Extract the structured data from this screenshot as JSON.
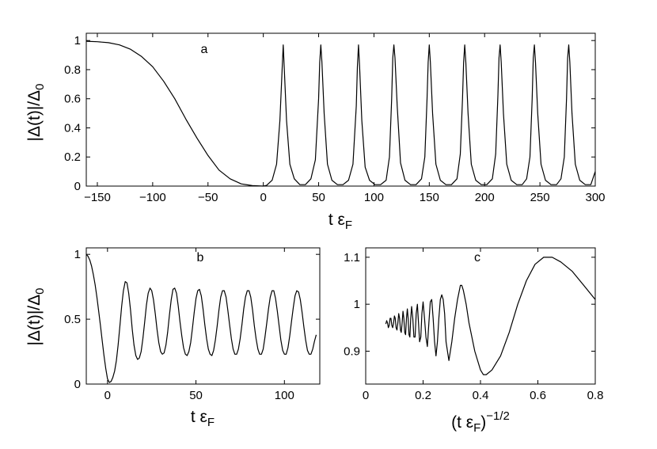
{
  "chart_data": [
    {
      "panel": "a",
      "type": "line",
      "title": "",
      "xlabel": "t εF",
      "ylabel": "|Δ(t)|/Δ0",
      "xlim": [
        -160,
        300
      ],
      "ylim": [
        0,
        1.05
      ],
      "xticks": [
        "−150",
        "−100",
        "−50",
        "0",
        "50",
        "100",
        "150",
        "200",
        "250",
        "300"
      ],
      "xtick_values": [
        -150,
        -100,
        -50,
        0,
        50,
        100,
        150,
        200,
        250,
        300
      ],
      "yticks": [
        "0",
        "0.2",
        "0.4",
        "0.6",
        "0.8",
        "1"
      ],
      "ytick_values": [
        0,
        0.2,
        0.4,
        0.6,
        0.8,
        1
      ],
      "grid": false,
      "series": [
        {
          "x": [
            -160,
            -150,
            -140,
            -130,
            -120,
            -110,
            -100,
            -90,
            -80,
            -70,
            -60,
            -50,
            -40,
            -30,
            -20,
            -10,
            0,
            3,
            8,
            12,
            15,
            17,
            18,
            19,
            21,
            24,
            28,
            33,
            38,
            43,
            47,
            50,
            51,
            52,
            53,
            55,
            58,
            62,
            67,
            72,
            77,
            81,
            84,
            85,
            86,
            87,
            89,
            92,
            96,
            101,
            106,
            111,
            114,
            116,
            117,
            118,
            119,
            121,
            124,
            128,
            133,
            138,
            143,
            146,
            148,
            149,
            150,
            151,
            153,
            156,
            160,
            165,
            170,
            175,
            178,
            180,
            181,
            182,
            183,
            185,
            188,
            192,
            197,
            202,
            207,
            210,
            212,
            213,
            214,
            215,
            217,
            220,
            224,
            229,
            234,
            238,
            241,
            243,
            244,
            245,
            246,
            248,
            251,
            255,
            260,
            265,
            269,
            272,
            274,
            275,
            276,
            277,
            279,
            282,
            286,
            291,
            296,
            300
          ],
          "y": [
            0.995,
            0.992,
            0.985,
            0.97,
            0.94,
            0.89,
            0.82,
            0.72,
            0.6,
            0.46,
            0.33,
            0.21,
            0.11,
            0.05,
            0.015,
            0.003,
            0.0,
            0.005,
            0.04,
            0.15,
            0.45,
            0.8,
            0.97,
            0.8,
            0.45,
            0.15,
            0.05,
            0.01,
            0.01,
            0.05,
            0.18,
            0.6,
            0.85,
            0.97,
            0.85,
            0.5,
            0.15,
            0.04,
            0.01,
            0.01,
            0.04,
            0.15,
            0.55,
            0.82,
            0.97,
            0.82,
            0.45,
            0.13,
            0.04,
            0.01,
            0.01,
            0.04,
            0.2,
            0.6,
            0.88,
            0.97,
            0.88,
            0.55,
            0.16,
            0.04,
            0.01,
            0.01,
            0.05,
            0.2,
            0.6,
            0.85,
            0.97,
            0.85,
            0.5,
            0.15,
            0.04,
            0.01,
            0.01,
            0.05,
            0.22,
            0.6,
            0.85,
            0.97,
            0.85,
            0.5,
            0.15,
            0.04,
            0.01,
            0.01,
            0.05,
            0.22,
            0.62,
            0.88,
            0.97,
            0.85,
            0.5,
            0.15,
            0.04,
            0.01,
            0.01,
            0.05,
            0.2,
            0.6,
            0.88,
            0.97,
            0.85,
            0.5,
            0.15,
            0.04,
            0.01,
            0.01,
            0.05,
            0.2,
            0.6,
            0.88,
            0.97,
            0.85,
            0.5,
            0.15,
            0.04,
            0.01,
            0.01,
            0.1
          ]
        }
      ]
    },
    {
      "panel": "b",
      "type": "line",
      "title": "",
      "xlabel": "t εF",
      "ylabel": "|Δ(t)|/Δ0",
      "xlim": [
        -12,
        120
      ],
      "ylim": [
        0,
        1.05
      ],
      "xticks": [
        "0",
        "50",
        "100"
      ],
      "xtick_values": [
        0,
        50,
        100
      ],
      "yticks": [
        "0",
        "0.5",
        "1"
      ],
      "ytick_values": [
        0,
        0.5,
        1
      ],
      "grid": false,
      "series": [
        {
          "x": [
            -12,
            -11,
            -10,
            -9,
            -8,
            -7,
            -6,
            -5,
            -4,
            -3,
            -2,
            -1,
            0,
            1,
            2,
            3,
            4,
            5,
            6,
            7,
            8,
            9,
            10,
            11,
            12,
            13,
            14,
            15,
            16,
            17,
            18,
            19,
            20,
            21,
            22,
            23,
            24,
            25,
            26,
            27,
            28,
            29,
            30,
            31,
            32,
            33,
            34,
            35,
            36,
            37,
            38,
            39,
            40,
            41,
            42,
            43,
            44,
            45,
            46,
            47,
            48,
            49,
            50,
            51,
            52,
            53,
            54,
            55,
            56,
            57,
            58,
            59,
            60,
            61,
            62,
            63,
            64,
            65,
            66,
            67,
            68,
            69,
            70,
            71,
            72,
            73,
            74,
            75,
            76,
            77,
            78,
            79,
            80,
            81,
            82,
            83,
            84,
            85,
            86,
            87,
            88,
            89,
            90,
            91,
            92,
            93,
            94,
            95,
            96,
            97,
            98,
            99,
            100,
            101,
            102,
            103,
            104,
            105,
            106,
            107,
            108,
            109,
            110,
            111,
            112,
            113,
            114,
            115,
            116,
            117,
            118
          ],
          "y": [
            1.0,
            0.985,
            0.955,
            0.909,
            0.845,
            0.765,
            0.671,
            0.565,
            0.451,
            0.335,
            0.222,
            0.12,
            0.04,
            0.012,
            0.02,
            0.05,
            0.1,
            0.18,
            0.3,
            0.45,
            0.6,
            0.72,
            0.79,
            0.78,
            0.7,
            0.57,
            0.42,
            0.3,
            0.22,
            0.19,
            0.2,
            0.25,
            0.35,
            0.48,
            0.61,
            0.7,
            0.74,
            0.72,
            0.65,
            0.54,
            0.42,
            0.32,
            0.25,
            0.23,
            0.24,
            0.3,
            0.4,
            0.53,
            0.65,
            0.73,
            0.74,
            0.7,
            0.6,
            0.48,
            0.37,
            0.28,
            0.23,
            0.22,
            0.25,
            0.32,
            0.43,
            0.55,
            0.66,
            0.72,
            0.73,
            0.68,
            0.58,
            0.46,
            0.35,
            0.27,
            0.23,
            0.22,
            0.26,
            0.34,
            0.45,
            0.57,
            0.67,
            0.72,
            0.72,
            0.67,
            0.57,
            0.46,
            0.35,
            0.27,
            0.23,
            0.23,
            0.27,
            0.35,
            0.46,
            0.58,
            0.67,
            0.72,
            0.72,
            0.67,
            0.57,
            0.45,
            0.35,
            0.27,
            0.23,
            0.23,
            0.27,
            0.36,
            0.47,
            0.58,
            0.67,
            0.72,
            0.72,
            0.66,
            0.56,
            0.45,
            0.34,
            0.26,
            0.23,
            0.23,
            0.28,
            0.37,
            0.48,
            0.59,
            0.68,
            0.72,
            0.71,
            0.65,
            0.55,
            0.44,
            0.34,
            0.26,
            0.23,
            0.23,
            0.27,
            0.33,
            0.38
          ]
        }
      ]
    },
    {
      "panel": "c",
      "type": "line",
      "title": "",
      "xlabel": "(t εF)−1/2",
      "ylabel": "",
      "xlim": [
        0,
        0.8
      ],
      "ylim": [
        0.83,
        1.12
      ],
      "xticks": [
        "0",
        "0.2",
        "0.4",
        "0.6",
        "0.8"
      ],
      "xtick_values": [
        0,
        0.2,
        0.4,
        0.6,
        0.8
      ],
      "yticks": [
        "0.9",
        "1",
        "1.1"
      ],
      "ytick_values": [
        0.9,
        1.0,
        1.1
      ],
      "grid": false,
      "series": [
        {
          "x": [
            0.8,
            0.76,
            0.72,
            0.68,
            0.65,
            0.62,
            0.59,
            0.56,
            0.53,
            0.5,
            0.47,
            0.44,
            0.42,
            0.41,
            0.4,
            0.38,
            0.36,
            0.35,
            0.34,
            0.335,
            0.33,
            0.32,
            0.31,
            0.3,
            0.29,
            0.28,
            0.275,
            0.27,
            0.265,
            0.26,
            0.255,
            0.25,
            0.245,
            0.24,
            0.235,
            0.23,
            0.225,
            0.22,
            0.215,
            0.21,
            0.205,
            0.2,
            0.196,
            0.192,
            0.188,
            0.184,
            0.18,
            0.176,
            0.172,
            0.168,
            0.164,
            0.16,
            0.157,
            0.154,
            0.151,
            0.148,
            0.145,
            0.142,
            0.139,
            0.136,
            0.133,
            0.13,
            0.127,
            0.124,
            0.121,
            0.118,
            0.115,
            0.112,
            0.109,
            0.106,
            0.103,
            0.1,
            0.097,
            0.094,
            0.091,
            0.088,
            0.085,
            0.082,
            0.079,
            0.076,
            0.073,
            0.07
          ],
          "y": [
            1.01,
            1.04,
            1.07,
            1.09,
            1.1,
            1.1,
            1.085,
            1.05,
            1.0,
            0.94,
            0.89,
            0.86,
            0.85,
            0.85,
            0.86,
            0.9,
            0.96,
            1.0,
            1.03,
            1.04,
            1.04,
            1.01,
            0.97,
            0.92,
            0.88,
            0.92,
            0.98,
            1.01,
            1.02,
            1.01,
            0.97,
            0.92,
            0.89,
            0.92,
            0.97,
            1.01,
            1.005,
            0.96,
            0.91,
            0.93,
            0.97,
            1.005,
            0.98,
            0.93,
            0.92,
            0.96,
            1.0,
            0.98,
            0.93,
            0.93,
            0.97,
            0.995,
            0.97,
            0.93,
            0.935,
            0.97,
            0.99,
            0.97,
            0.935,
            0.94,
            0.97,
            0.985,
            0.96,
            0.94,
            0.945,
            0.97,
            0.98,
            0.96,
            0.945,
            0.95,
            0.97,
            0.975,
            0.96,
            0.95,
            0.955,
            0.97,
            0.97,
            0.955,
            0.95,
            0.96,
            0.965,
            0.958
          ]
        }
      ]
    }
  ]
}
